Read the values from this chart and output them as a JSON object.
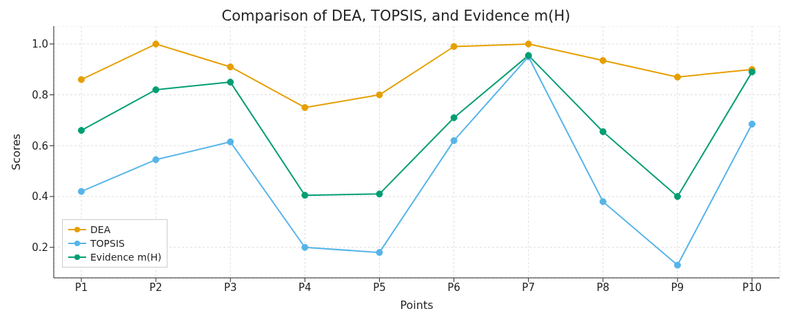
{
  "chart_data": {
    "type": "line",
    "title": "Comparison of DEA, TOPSIS, and Evidence m(H)",
    "xlabel": "Points",
    "ylabel": "Scores",
    "categories": [
      "P1",
      "P2",
      "P3",
      "P4",
      "P5",
      "P6",
      "P7",
      "P8",
      "P9",
      "P10"
    ],
    "series": [
      {
        "name": "DEA",
        "color": "#e69f00",
        "values": [
          0.86,
          1.0,
          0.91,
          0.75,
          0.8,
          0.99,
          1.0,
          0.935,
          0.87,
          0.9
        ]
      },
      {
        "name": "TOPSIS",
        "color": "#56b4e9",
        "values": [
          0.42,
          0.545,
          0.615,
          0.2,
          0.18,
          0.62,
          0.95,
          0.38,
          0.13,
          0.685
        ]
      },
      {
        "name": "Evidence m(H)",
        "color": "#009e73",
        "values": [
          0.66,
          0.82,
          0.85,
          0.405,
          0.41,
          0.71,
          0.955,
          0.655,
          0.4,
          0.89
        ]
      }
    ],
    "ylim": [
      0.08,
      1.07
    ],
    "yticks": [
      0.2,
      0.4,
      0.6,
      0.8,
      {
        "value": 1.0,
        "label": "1.0"
      }
    ],
    "grid": true,
    "legend": "bottom left",
    "marker": "circle",
    "line_style": "solid"
  }
}
